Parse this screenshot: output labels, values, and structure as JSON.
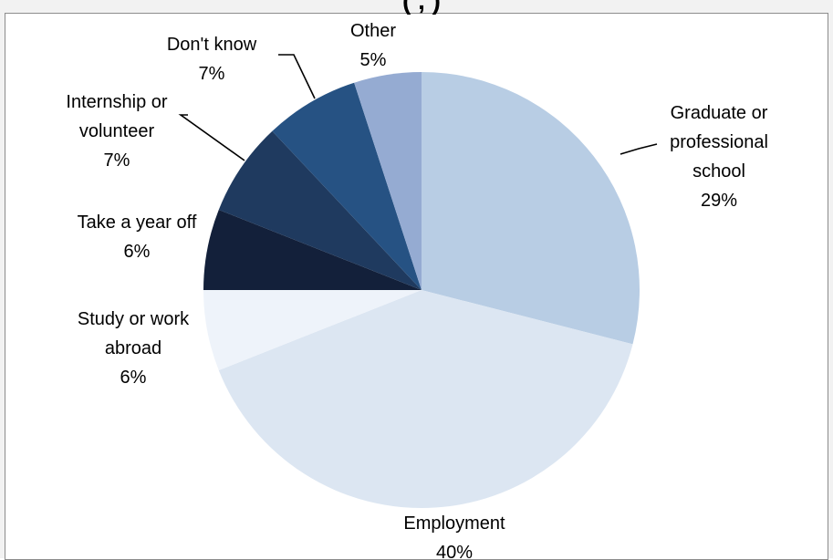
{
  "chart_data": {
    "type": "pie",
    "title": "(          ,          )",
    "start_angle_deg": 0,
    "direction": "clockwise",
    "legend": "none",
    "slices": [
      {
        "label_lines": [
          "Graduate or",
          "professional",
          "school"
        ],
        "value_label": "29%",
        "value": 29,
        "color": "#b8cde4"
      },
      {
        "label_lines": [
          "Employment"
        ],
        "value_label": "40%",
        "value": 40,
        "color": "#dce6f2"
      },
      {
        "label_lines": [
          "Study or work",
          "abroad"
        ],
        "value_label": "6%",
        "value": 6,
        "color": "#eef3fa"
      },
      {
        "label_lines": [
          "Take a year off"
        ],
        "value_label": "6%",
        "value": 6,
        "color": "#13203a"
      },
      {
        "label_lines": [
          "Internship or",
          "volunteer"
        ],
        "value_label": "7%",
        "value": 7,
        "color": "#1f3a5f"
      },
      {
        "label_lines": [
          "Don't know"
        ],
        "value_label": "7%",
        "value": 7,
        "color": "#265283"
      },
      {
        "label_lines": [
          "Other"
        ],
        "value_label": "5%",
        "value": 5,
        "color": "#95abd2"
      }
    ]
  }
}
